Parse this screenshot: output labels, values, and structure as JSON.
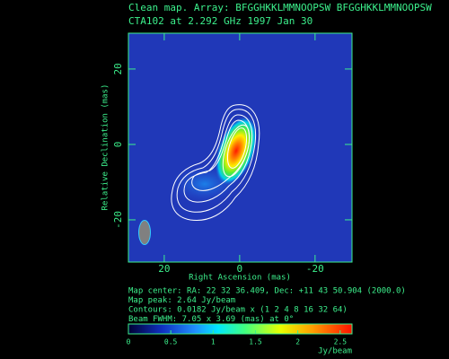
{
  "chart_data": {
    "type": "image",
    "title": "Clean map.  Array: BFGGHKKLMMNOOPSW BFGGHKKLMMNOOPSW",
    "subtitle": "CTA102 at 2.292 GHz 1997 Jan 30",
    "xlabel": "Right Ascension  (mas)",
    "ylabel": "Relative Declination  (mas)",
    "xlim": [
      29.5,
      -29.8
    ],
    "ylim": [
      -31.2,
      29.5
    ],
    "xticks": [
      20,
      0,
      -20
    ],
    "yticks": [
      20,
      0,
      -20
    ],
    "info": [
      "Map center:  RA: 22 32 36.409,  Dec: +11 43 50.904 (2000.0)",
      "Map peak: 2.64 Jy/beam",
      "Contours: 0.0182 Jy/beam x (1 2 4 8 16 32 64)",
      "Beam FWHM: 7.05 x 3.69 (mas) at 0°"
    ],
    "colorbar": {
      "lim": [
        0,
        2.64
      ],
      "ticks": [
        0,
        0.5,
        1,
        1.5,
        2,
        2.5
      ],
      "label": "Jy/beam"
    }
  }
}
